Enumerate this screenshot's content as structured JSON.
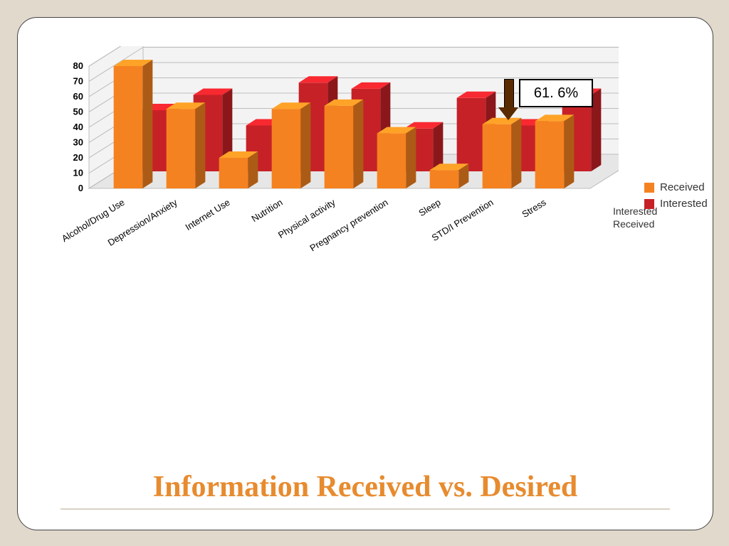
{
  "slide": {
    "title": "Information Received vs. Desired",
    "background_color": "#e0d9cc",
    "card_color": "#ffffff",
    "title_color": "#e78b2f",
    "title_fontsize": 42
  },
  "callout": {
    "label": "61. 6%",
    "box_border": "#000000",
    "arrow_color": "#5a2a00"
  },
  "chart": {
    "type": "3d-bar",
    "categories": [
      "Alcohol/Drug Use",
      "Depression/Anxiety",
      "Internet Use",
      "Nutrition",
      "Physical activity",
      "Pregnancy prevention",
      "Sleep",
      "STD/I Prevention",
      "Stress"
    ],
    "series": [
      {
        "name": "Received",
        "color": "#f58220",
        "values": [
          80,
          52,
          20,
          52,
          54,
          36,
          12,
          42,
          44
        ]
      },
      {
        "name": "Interested",
        "color": "#c62127",
        "values": [
          40,
          50,
          30,
          58,
          54,
          28,
          48,
          30,
          50
        ]
      }
    ],
    "y_axis": {
      "min": 0,
      "max": 80,
      "tick_step": 10,
      "labels": [
        "0",
        "10",
        "20",
        "30",
        "40",
        "50",
        "60",
        "70",
        "80"
      ]
    },
    "depth_axis_labels": [
      "Interested",
      "Received"
    ],
    "label_fontsize": 13,
    "tick_fontsize": 13,
    "floor_color": "#e6e6e6",
    "wall_color": "#f3f3f3",
    "grid_color": "#bcbcbc",
    "bar_width": 0.55,
    "category_label_rotation": -32
  },
  "legend": {
    "items": [
      {
        "label": "Received",
        "color": "#f58220"
      },
      {
        "label": "Interested",
        "color": "#c62127"
      }
    ],
    "fontsize": 15
  }
}
